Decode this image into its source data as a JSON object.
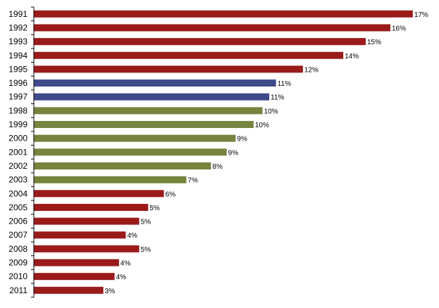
{
  "chart_data": {
    "type": "bar",
    "orientation": "horizontal",
    "title": "",
    "xlabel": "",
    "ylabel": "",
    "grid": false,
    "legend": "none",
    "xlim": [
      0,
      17
    ],
    "value_suffix": "%",
    "categories": [
      "1991",
      "1992",
      "1993",
      "1994",
      "1995",
      "1996",
      "1997",
      "1998",
      "1999",
      "2000",
      "2001",
      "2002",
      "2003",
      "2004",
      "2005",
      "2006",
      "2007",
      "2008",
      "2009",
      "2010",
      "2011"
    ],
    "values": [
      17,
      16,
      15,
      14,
      12,
      11,
      11,
      10,
      10,
      9,
      9,
      8,
      7,
      6,
      5,
      5,
      4,
      5,
      4,
      4,
      3
    ],
    "values_precise": [
      16.9,
      15.9,
      14.8,
      13.8,
      12.0,
      10.8,
      10.5,
      10.2,
      9.8,
      9.0,
      8.6,
      7.9,
      6.8,
      5.8,
      5.1,
      4.7,
      4.1,
      4.7,
      3.8,
      3.6,
      3.1
    ],
    "bar_colors": [
      "#9B1B1B",
      "#9B1B1B",
      "#9B1B1B",
      "#9B1B1B",
      "#9B1B1B",
      "#3F4A8C",
      "#3F4A8C",
      "#76843E",
      "#76843E",
      "#76843E",
      "#76843E",
      "#76843E",
      "#76843E",
      "#9B1B1B",
      "#9B1B1B",
      "#9B1B1B",
      "#9B1B1B",
      "#9B1B1B",
      "#9B1B1B",
      "#9B1B1B",
      "#9B1B1B"
    ]
  }
}
